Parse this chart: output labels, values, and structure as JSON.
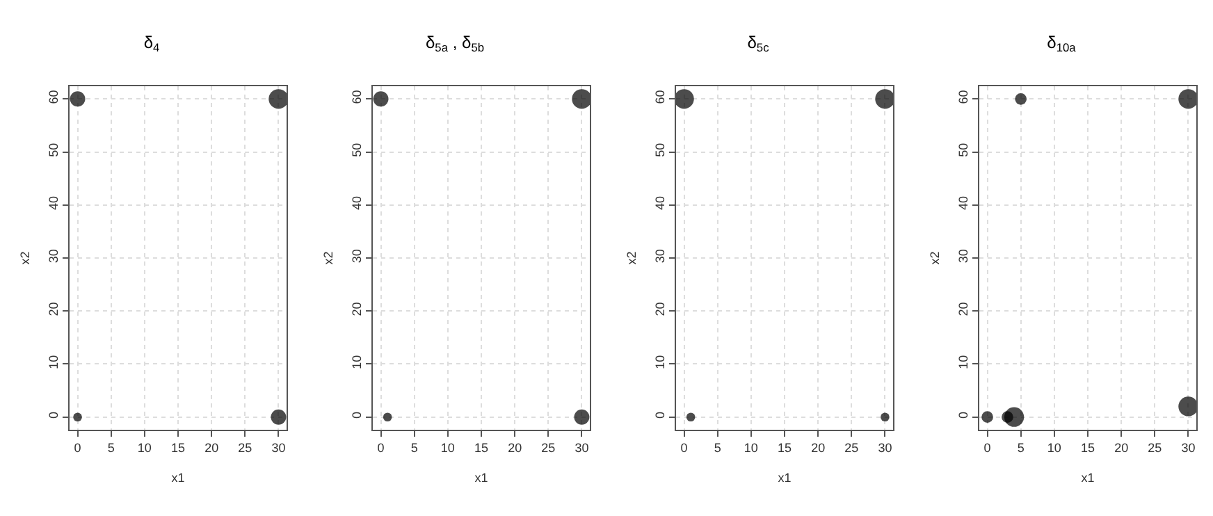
{
  "chart_data": [
    {
      "type": "bubble",
      "title": "δ$_{4}$",
      "xlabel": "x1",
      "ylabel": "x2",
      "x": [
        0,
        30,
        0,
        30
      ],
      "values": [
        60,
        60,
        0,
        0
      ],
      "sizes": [
        0.6,
        1,
        0.2,
        0.6
      ],
      "color": "#000000",
      "xlim": [
        -1.2,
        31.2
      ],
      "ylim": [
        -2.4,
        62.4
      ],
      "xticks": [
        0,
        5,
        10,
        15,
        20,
        25,
        30
      ],
      "yticks": [
        0,
        10,
        20,
        30,
        40,
        50,
        60
      ],
      "grid": true,
      "marker": "circle"
    },
    {
      "type": "bubble",
      "title": "δ$_{5a}$ , δ$_{5b}$",
      "xlabel": "x1",
      "ylabel": "x2",
      "x": [
        0,
        30,
        1,
        30
      ],
      "values": [
        60,
        60,
        0,
        0
      ],
      "sizes": [
        0.6,
        1,
        0.2,
        0.6
      ],
      "color": "#000000",
      "xlim": [
        -1.2,
        31.2
      ],
      "ylim": [
        -2.4,
        62.4
      ],
      "xticks": [
        0,
        5,
        10,
        15,
        20,
        25,
        30
      ],
      "yticks": [
        0,
        10,
        20,
        30,
        40,
        50,
        60
      ],
      "grid": true,
      "marker": "circle"
    },
    {
      "type": "bubble",
      "title": "δ$_{5c}$",
      "xlabel": "x1",
      "ylabel": "x2",
      "x": [
        0,
        30,
        1,
        30
      ],
      "values": [
        60,
        60,
        0,
        0
      ],
      "sizes": [
        1,
        1,
        0.2,
        0.2
      ],
      "color": "#000000",
      "xlim": [
        -1.2,
        31.2
      ],
      "ylim": [
        -2.4,
        62.4
      ],
      "xticks": [
        0,
        5,
        10,
        15,
        20,
        25,
        30
      ],
      "yticks": [
        0,
        10,
        20,
        30,
        40,
        50,
        60
      ],
      "grid": true,
      "marker": "circle"
    },
    {
      "type": "bubble",
      "title": "δ$_{10a}$",
      "xlabel": "x1",
      "ylabel": "x2",
      "x": [
        0,
        3,
        4,
        5,
        30,
        30
      ],
      "values": [
        0,
        0,
        0,
        60,
        60,
        2
      ],
      "sizes": [
        0.35,
        0.35,
        1,
        0.35,
        1,
        1
      ],
      "color": "#000000",
      "xlim": [
        -1.2,
        31.2
      ],
      "ylim": [
        -2.4,
        62.4
      ],
      "xticks": [
        0,
        5,
        10,
        15,
        20,
        25,
        30
      ],
      "yticks": [
        0,
        10,
        20,
        30,
        40,
        50,
        60
      ],
      "grid": true,
      "marker": "circle"
    }
  ]
}
